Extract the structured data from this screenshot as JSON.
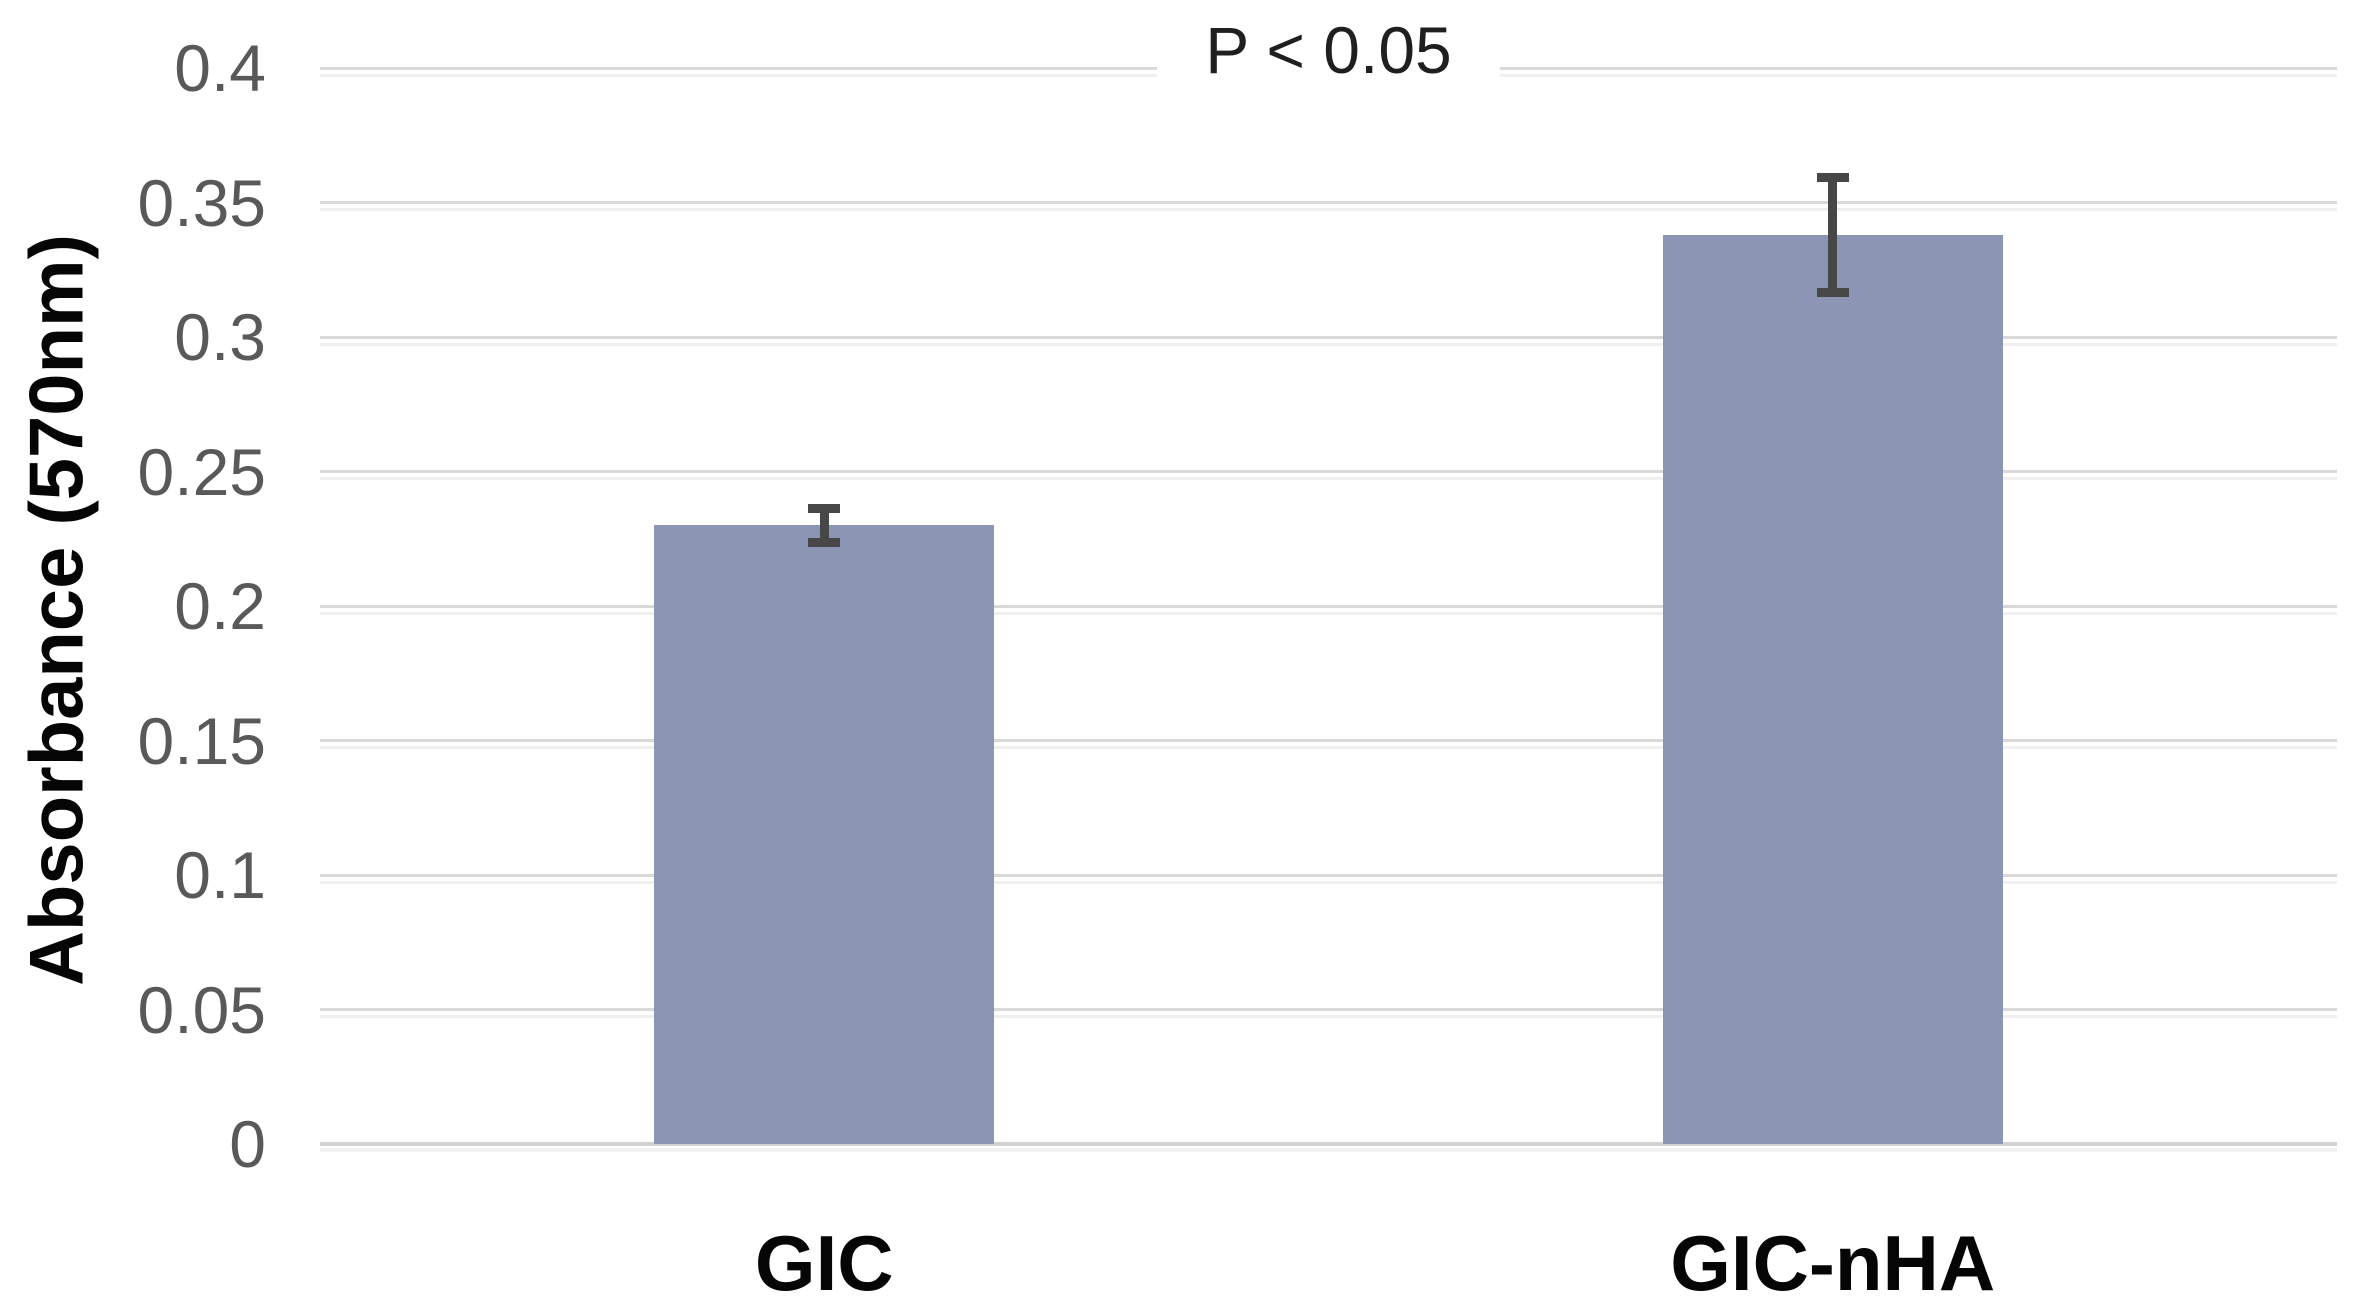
{
  "chart_data": {
    "type": "bar",
    "title": "P < 0.05",
    "title_role": "significance-annotation",
    "categories": [
      "GIC",
      "GIC-nHA"
    ],
    "values": [
      0.23,
      0.338
    ],
    "errors": [
      0.008,
      0.023
    ],
    "xlabel": "",
    "ylabel": "Absorbance (570nm)",
    "ylim": [
      0,
      0.4
    ],
    "yticks": [
      0,
      0.05,
      0.1,
      0.15,
      0.2,
      0.25,
      0.3,
      0.35,
      0.4
    ],
    "ytick_labels": [
      "0",
      "0.05",
      "0.1",
      "0.15",
      "0.2",
      "0.25",
      "0.3",
      "0.35",
      "0.4"
    ],
    "grid": true,
    "legend": false,
    "bar_color": "#8c96b4",
    "error_bar_color": "#474747",
    "gridline_color": "#d9d9d9",
    "baseline_color": "#d2d2d2",
    "tick_label_color": "#595959",
    "text_color": "#050505",
    "background_color": "#ffffff"
  }
}
